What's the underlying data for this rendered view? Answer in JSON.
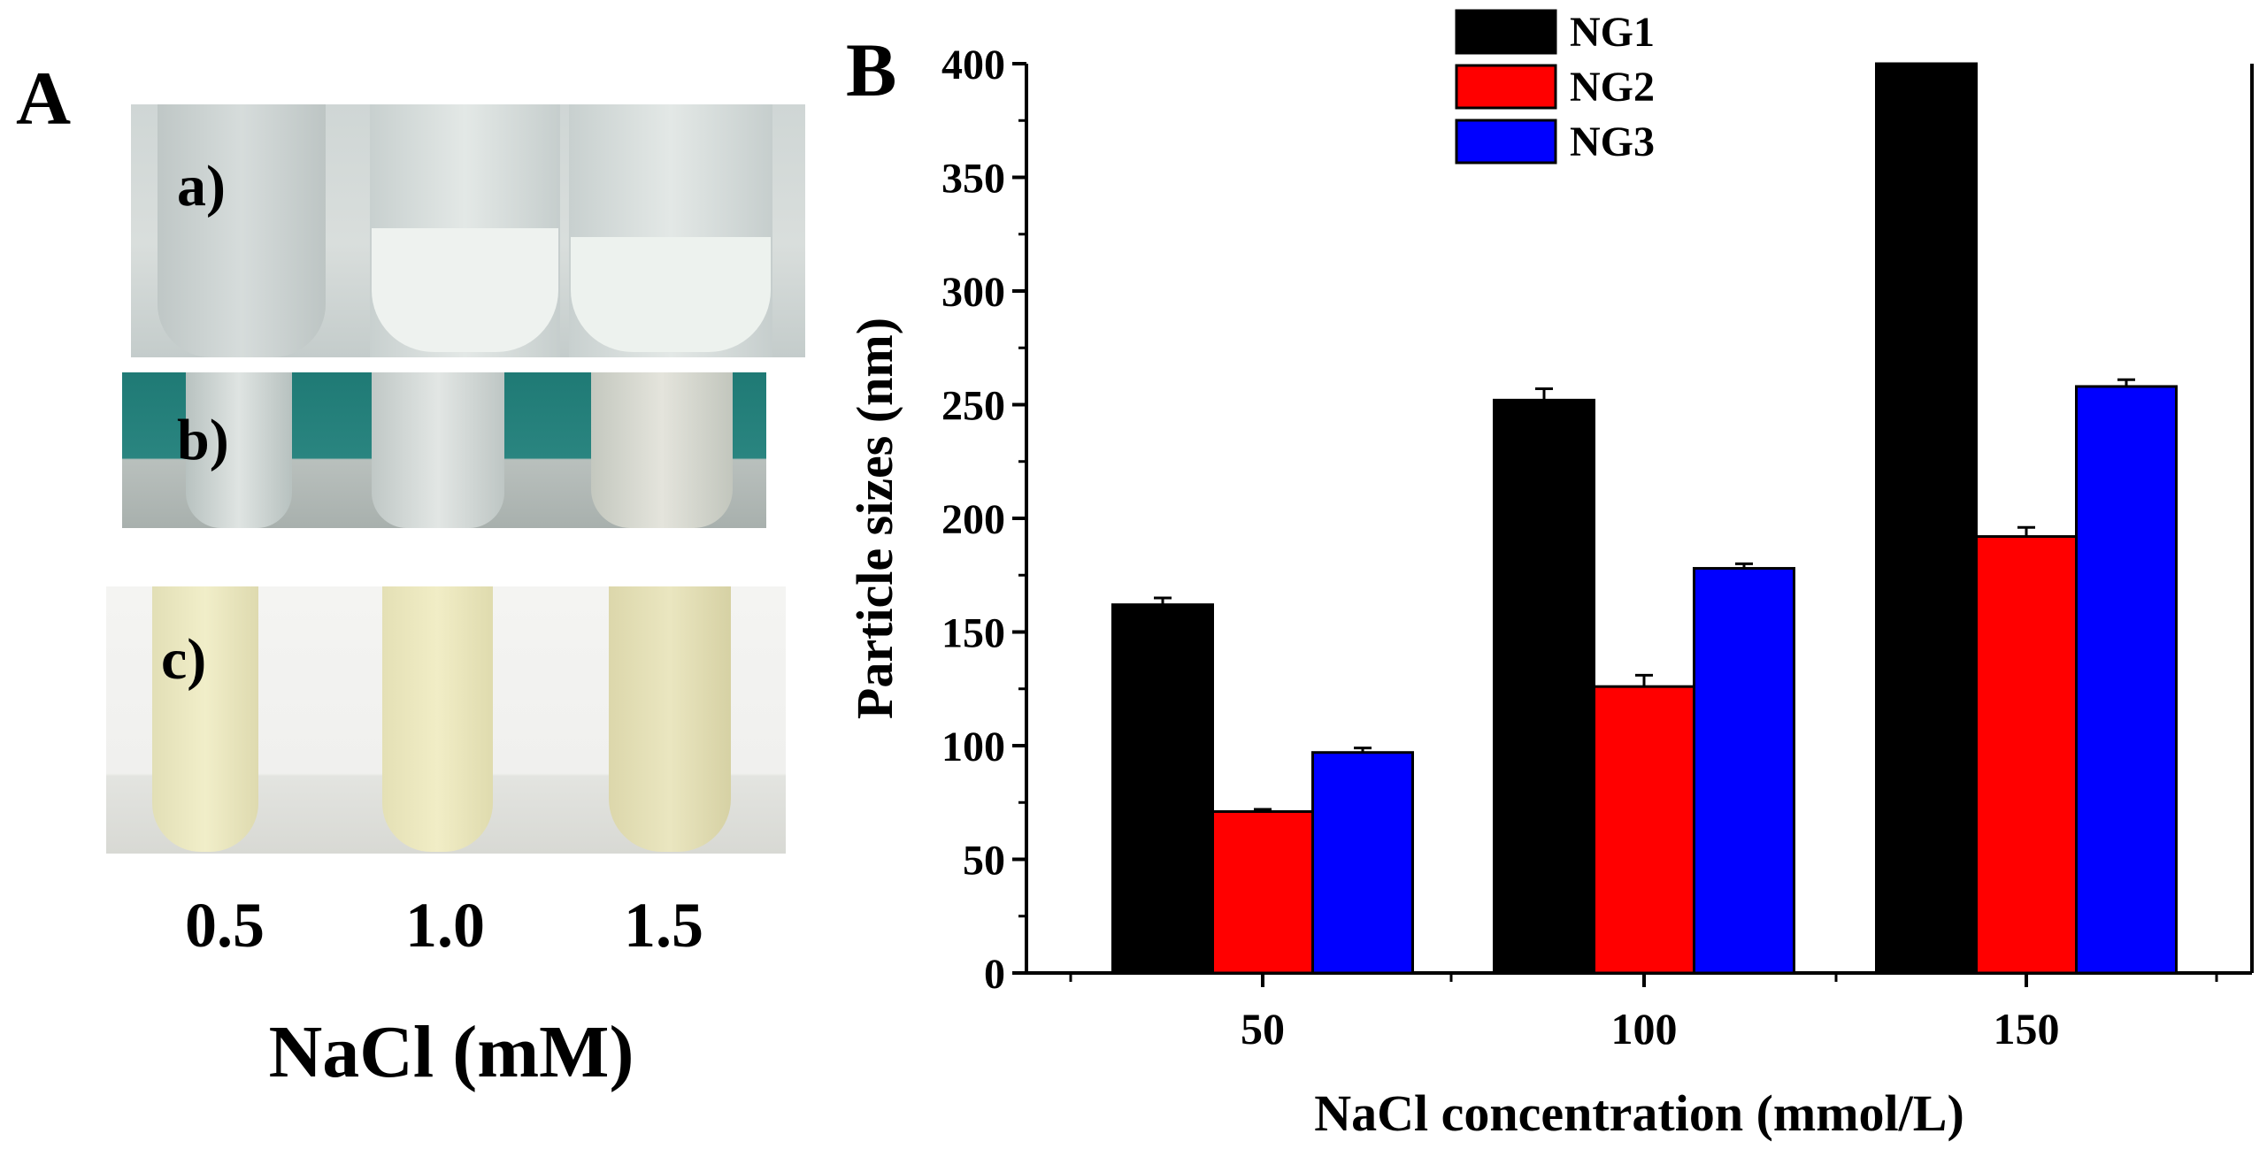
{
  "panel_a": {
    "label": "A",
    "photos": [
      {
        "label": "a)"
      },
      {
        "label": "b)"
      },
      {
        "label": "c)"
      }
    ],
    "concentrations": [
      "0.5",
      "1.0",
      "1.5"
    ],
    "xlabel": "NaCl (mM)"
  },
  "panel_b": {
    "label": "B"
  },
  "colors": {
    "NG1": "#000000",
    "NG2": "#ff0000",
    "NG3": "#0000ff"
  },
  "chart_data": {
    "type": "bar",
    "categories": [
      "50",
      "100",
      "150"
    ],
    "series": [
      {
        "name": "NG1",
        "values": [
          162,
          252,
          400
        ],
        "errors": [
          3,
          5,
          0
        ]
      },
      {
        "name": "NG2",
        "values": [
          71,
          126,
          192
        ],
        "errors": [
          1,
          5,
          4
        ]
      },
      {
        "name": "NG3",
        "values": [
          97,
          178,
          258
        ],
        "errors": [
          2,
          2,
          3
        ]
      }
    ],
    "title": "",
    "xlabel": "NaCl concentration (mmol/L)",
    "ylabel": "Particle sizes (nm)",
    "ylim": [
      0,
      400
    ],
    "yticks": [
      "0",
      "50",
      "100",
      "150",
      "200",
      "250",
      "300",
      "350",
      "400"
    ],
    "legend_position": "top-center",
    "grid": false
  }
}
